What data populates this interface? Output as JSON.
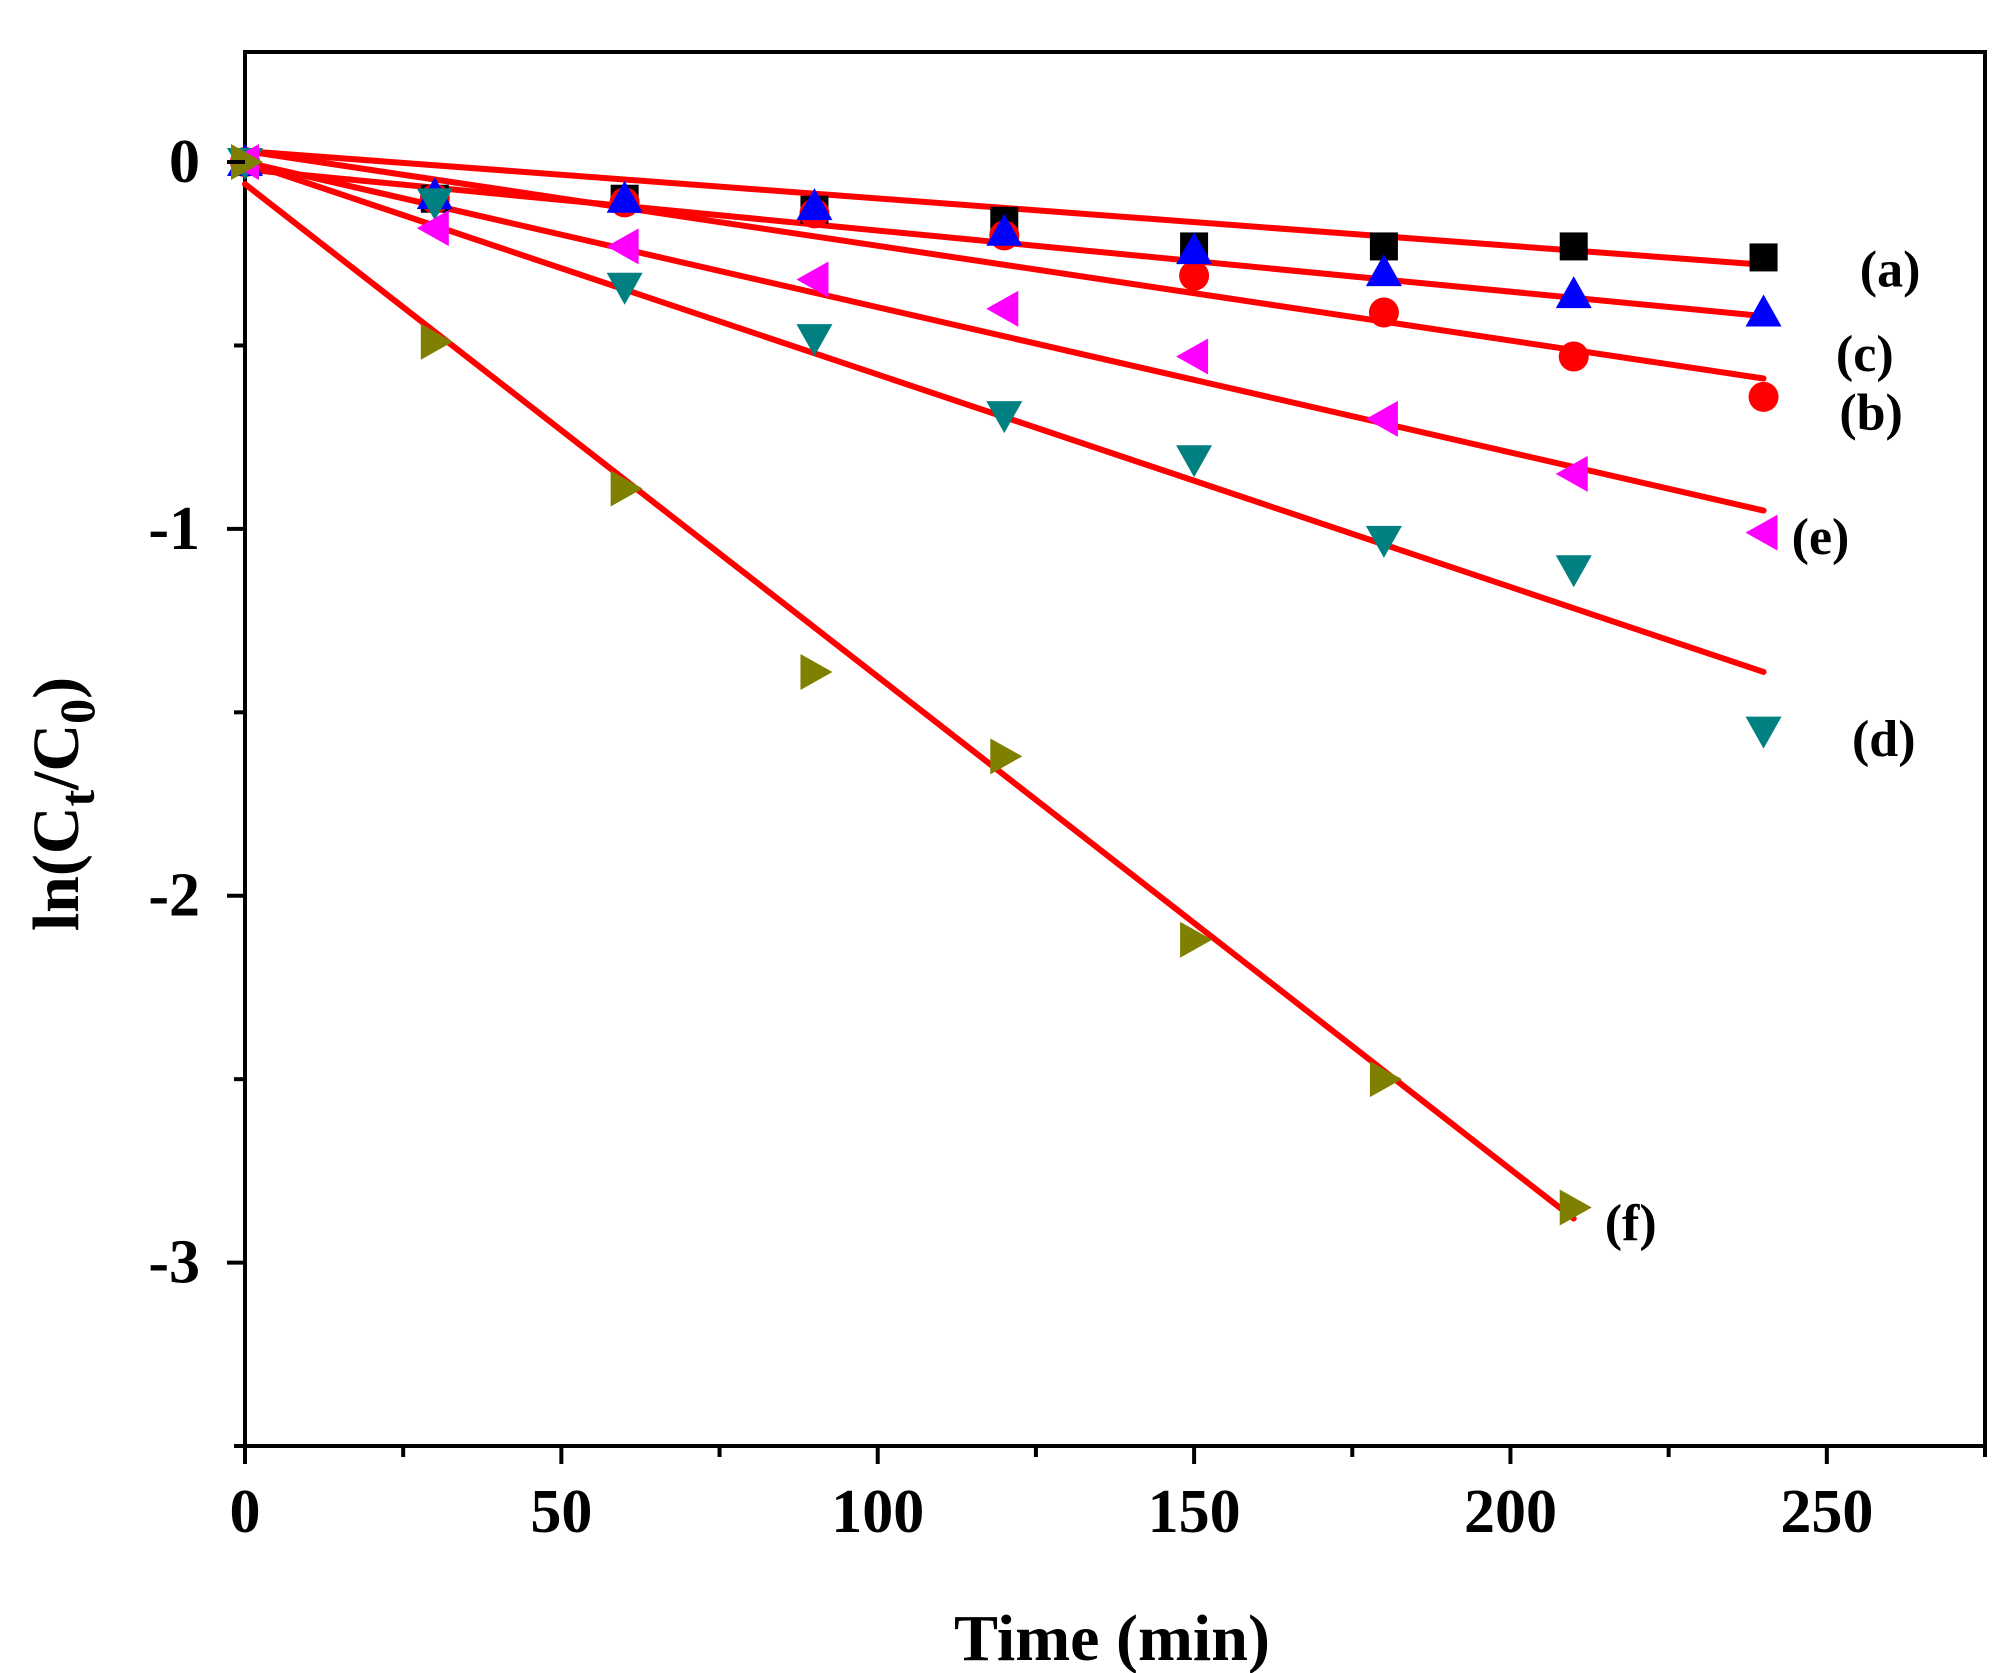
{
  "chart_data": {
    "type": "scatter",
    "title": "",
    "xlabel": "Time (min)",
    "ylabel": {
      "prefix": "ln(C",
      "sub1": "t",
      "mid": "/C",
      "sub2": "0",
      "suffix": ")"
    },
    "xlim": [
      0,
      275
    ],
    "ylim": [
      -3.5,
      0.3
    ],
    "x_major_ticks": [
      0,
      50,
      100,
      150,
      200,
      250
    ],
    "x_tick_labels": [
      "0",
      "50",
      "100",
      "150",
      "200",
      "250"
    ],
    "x_minor_ticks": [
      25,
      75,
      125,
      175,
      225,
      275
    ],
    "y_major_ticks": [
      0,
      -1,
      -2,
      -3
    ],
    "y_tick_labels": [
      "0",
      "-1",
      "-2",
      "-3"
    ],
    "y_minor_ticks": [
      -0.5,
      -1.5,
      -2.5,
      -3.5
    ],
    "grid": false,
    "fit_line_color": "#ff0000",
    "series": [
      {
        "name": "(a)",
        "marker": "square",
        "color": "#000000",
        "x": [
          0,
          30,
          60,
          90,
          120,
          150,
          180,
          210,
          240
        ],
        "y": [
          0.0,
          -0.1,
          -0.1,
          -0.13,
          -0.16,
          -0.23,
          -0.23,
          -0.23,
          -0.26
        ],
        "fit": {
          "x": [
            0,
            240
          ],
          "y": [
            0.03,
            -0.28
          ]
        },
        "label_at": [
          260,
          -0.29
        ]
      },
      {
        "name": "(b)",
        "marker": "circle",
        "color": "#ff0000",
        "x": [
          0,
          30,
          60,
          90,
          120,
          150,
          180,
          210,
          240
        ],
        "y": [
          0.0,
          -0.1,
          -0.11,
          -0.14,
          -0.2,
          -0.31,
          -0.41,
          -0.53,
          -0.64
        ],
        "fit": {
          "x": [
            0,
            240
          ],
          "y": [
            0.03,
            -0.59
          ]
        },
        "label_at": [
          257,
          -0.68
        ]
      },
      {
        "name": "(c)",
        "marker": "triangle-up",
        "color": "#0000ff",
        "x": [
          0,
          30,
          60,
          90,
          120,
          150,
          180,
          210,
          240
        ],
        "y": [
          0.0,
          -0.09,
          -0.1,
          -0.12,
          -0.19,
          -0.24,
          -0.3,
          -0.36,
          -0.41
        ],
        "fit": {
          "x": [
            0,
            240
          ],
          "y": [
            -0.02,
            -0.42
          ]
        },
        "label_at": [
          256,
          -0.52
        ]
      },
      {
        "name": "(d)",
        "marker": "triangle-down",
        "color": "#008080",
        "x": [
          0,
          30,
          60,
          90,
          120,
          150,
          180,
          210,
          240
        ],
        "y": [
          0.0,
          -0.11,
          -0.34,
          -0.48,
          -0.69,
          -0.81,
          -1.03,
          -1.11,
          -1.55
        ],
        "fit": {
          "x": [
            0,
            240
          ],
          "y": [
            0.0,
            -1.39
          ]
        },
        "label_at": [
          259,
          -1.57
        ]
      },
      {
        "name": "(e)",
        "marker": "triangle-left",
        "color": "#ff00ff",
        "x": [
          0,
          30,
          60,
          90,
          120,
          150,
          180,
          210,
          240
        ],
        "y": [
          0.0,
          -0.18,
          -0.23,
          -0.32,
          -0.4,
          -0.53,
          -0.7,
          -0.85,
          -1.01
        ],
        "fit": {
          "x": [
            0,
            240
          ],
          "y": [
            0.0,
            -0.95
          ]
        },
        "label_at": [
          249,
          -1.02
        ]
      },
      {
        "name": "(f)",
        "marker": "triangle-right",
        "color": "#808000",
        "x": [
          0,
          30,
          60,
          90,
          120,
          150,
          180,
          210
        ],
        "y": [
          0.0,
          -0.49,
          -0.89,
          -1.39,
          -1.62,
          -2.12,
          -2.5,
          -2.85
        ],
        "fit": {
          "x": [
            0,
            210
          ],
          "y": [
            -0.06,
            -2.88
          ]
        },
        "label_at": [
          219,
          -2.89
        ]
      }
    ]
  }
}
